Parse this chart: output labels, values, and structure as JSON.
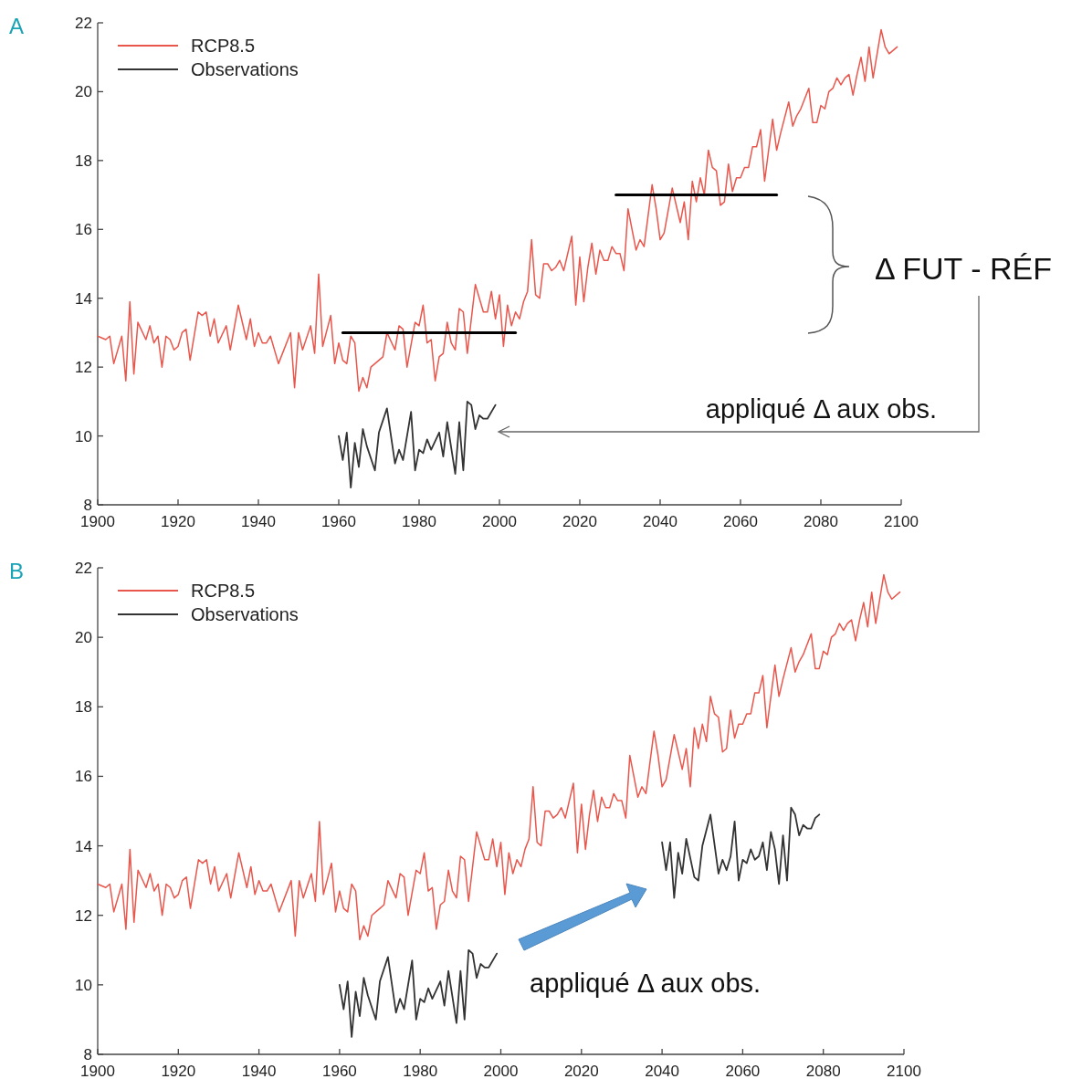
{
  "chart_data": [
    {
      "type": "line",
      "title": "A",
      "xlim": [
        1900,
        2100
      ],
      "ylim": [
        8,
        22
      ],
      "xticks": [
        1900,
        1920,
        1940,
        1960,
        1980,
        2000,
        2020,
        2040,
        2060,
        2080,
        2100
      ],
      "yticks": [
        8,
        10,
        12,
        14,
        16,
        18,
        20,
        22
      ],
      "grid": false,
      "legend": "top left",
      "line_style": "solid",
      "marker": "none",
      "annotations": [
        "Δ FUT - RÉF",
        "appliqué Δ aux obs."
      ],
      "series": [
        {
          "name": "RCP8.5",
          "color": "#e8564c",
          "x": [
            1900,
            1902,
            1903,
            1904,
            1906,
            1907,
            1908,
            1909,
            1910,
            1912,
            1913,
            1914,
            1915,
            1916,
            1917,
            1918,
            1919,
            1920,
            1921,
            1922,
            1923,
            1925,
            1926,
            1927,
            1928,
            1929,
            1930,
            1932,
            1933,
            1935,
            1937,
            1938,
            1939,
            1940,
            1941,
            1942,
            1943,
            1945,
            1948,
            1949,
            1950,
            1951,
            1953,
            1954,
            1955,
            1956,
            1958,
            1959,
            1960,
            1961,
            1962,
            1963,
            1964,
            1965,
            1966,
            1967,
            1968,
            1970,
            1971,
            1972,
            1974,
            1975,
            1976,
            1977,
            1979,
            1980,
            1981,
            1982,
            1983,
            1984,
            1985,
            1986,
            1987,
            1988,
            1989,
            1990,
            1991,
            1992,
            1994,
            1995,
            1996,
            1997,
            1998,
            1999,
            2000,
            2001,
            2002,
            2003,
            2004,
            2005,
            2006,
            2007,
            2008,
            2009,
            2010,
            2011,
            2012,
            2013,
            2014,
            2015,
            2016,
            2018,
            2019,
            2020,
            2021,
            2022,
            2023,
            2024,
            2025,
            2026,
            2027,
            2028,
            2029,
            2030,
            2031,
            2032,
            2033,
            2034,
            2035,
            2036,
            2038,
            2039,
            2040,
            2041,
            2043,
            2045,
            2046,
            2047,
            2048,
            2049,
            2050,
            2051,
            2052,
            2053,
            2054,
            2055,
            2056,
            2057,
            2058,
            2059,
            2060,
            2061,
            2062,
            2063,
            2064,
            2065,
            2066,
            2068,
            2069,
            2070,
            2072,
            2073,
            2074,
            2075,
            2077,
            2078,
            2079,
            2080,
            2081,
            2082,
            2083,
            2084,
            2085,
            2086,
            2087,
            2088,
            2089,
            2090,
            2091,
            2092,
            2093,
            2095,
            2096,
            2097,
            2099
          ],
          "values": [
            12.9,
            12.8,
            12.9,
            12.1,
            12.9,
            11.6,
            13.9,
            11.8,
            13.3,
            12.8,
            13.2,
            12.7,
            12.9,
            12.0,
            12.9,
            12.8,
            12.5,
            12.6,
            13.0,
            13.1,
            12.2,
            13.6,
            13.5,
            13.6,
            12.9,
            13.4,
            12.7,
            13.2,
            12.5,
            13.8,
            12.8,
            13.4,
            12.6,
            13.0,
            12.7,
            12.7,
            12.9,
            12.1,
            13.0,
            11.4,
            13.0,
            12.5,
            13.2,
            12.4,
            14.7,
            12.6,
            13.5,
            12.1,
            12.7,
            12.2,
            12.1,
            12.9,
            12.7,
            11.3,
            11.7,
            11.4,
            12.0,
            12.2,
            12.3,
            13.0,
            12.5,
            13.2,
            13.1,
            12.0,
            13.3,
            13.2,
            13.8,
            12.7,
            12.8,
            11.6,
            12.3,
            12.4,
            13.3,
            12.7,
            12.5,
            13.7,
            13.6,
            12.4,
            14.4,
            14.0,
            13.6,
            13.6,
            14.2,
            13.4,
            14.1,
            12.6,
            13.8,
            13.2,
            13.6,
            13.4,
            13.9,
            14.2,
            15.7,
            14.1,
            14.0,
            15.0,
            15.0,
            14.8,
            14.9,
            15.1,
            14.8,
            15.8,
            13.8,
            15.2,
            13.9,
            14.9,
            15.6,
            14.7,
            15.4,
            15.1,
            15.1,
            15.5,
            15.3,
            15.3,
            14.8,
            16.6,
            16.0,
            15.4,
            15.7,
            15.5,
            17.3,
            16.6,
            15.7,
            15.9,
            17.2,
            16.2,
            16.8,
            15.7,
            17.4,
            16.8,
            17.5,
            17.0,
            18.3,
            17.8,
            17.7,
            16.7,
            16.8,
            17.9,
            17.1,
            17.5,
            17.5,
            17.8,
            17.8,
            18.4,
            18.4,
            18.9,
            17.4,
            19.2,
            18.3,
            18.8,
            19.7,
            19.0,
            19.3,
            19.5,
            20.1,
            19.1,
            19.1,
            19.6,
            19.5,
            20.0,
            20.1,
            20.4,
            20.2,
            20.4,
            20.5,
            19.9,
            20.5,
            21.0,
            20.3,
            21.3,
            20.4,
            21.8,
            21.3,
            21.1,
            21.3
          ]
        },
        {
          "name": "Observations",
          "color": "#333333",
          "x": [
            1960,
            1961,
            1962,
            1963,
            1964,
            1965,
            1966,
            1967,
            1969,
            1970,
            1972,
            1974,
            1975,
            1976,
            1978,
            1979,
            1980,
            1981,
            1982,
            1983,
            1985,
            1986,
            1987,
            1989,
            1990,
            1991,
            1992,
            1993,
            1994,
            1995,
            1996,
            1997,
            1999
          ],
          "values": [
            10.0,
            9.3,
            10.1,
            8.5,
            9.8,
            9.1,
            10.2,
            9.7,
            9.0,
            10.1,
            10.8,
            9.2,
            9.6,
            9.3,
            10.7,
            9.0,
            9.6,
            9.5,
            9.9,
            9.6,
            10.1,
            9.4,
            10.4,
            8.9,
            10.4,
            9.0,
            11.0,
            10.9,
            10.2,
            10.6,
            10.5,
            10.5,
            10.9
          ]
        },
        {
          "color": "#000000",
          "x": [
            1961,
            2004
          ],
          "values": [
            13.0,
            13.0
          ]
        },
        {
          "color": "#000000",
          "x": [
            2029,
            2069
          ],
          "values": [
            17.0,
            17.0
          ]
        }
      ]
    },
    {
      "type": "line",
      "title": "B",
      "xlim": [
        1900,
        2100
      ],
      "ylim": [
        8,
        22
      ],
      "xticks": [
        1900,
        1920,
        1940,
        1960,
        1980,
        2000,
        2020,
        2040,
        2060,
        2080,
        2100
      ],
      "yticks": [
        8,
        10,
        12,
        14,
        16,
        18,
        20,
        22
      ],
      "grid": false,
      "legend": "top left",
      "line_style": "solid",
      "marker": "none",
      "annotations": [
        "appliqué Δ aux obs."
      ],
      "series": [
        {
          "name": "RCP8.5",
          "color": "#e8564c",
          "x": [
            1900,
            1902,
            1903,
            1904,
            1906,
            1907,
            1908,
            1909,
            1910,
            1912,
            1913,
            1914,
            1915,
            1916,
            1917,
            1918,
            1919,
            1920,
            1921,
            1922,
            1923,
            1925,
            1926,
            1927,
            1928,
            1929,
            1930,
            1932,
            1933,
            1935,
            1937,
            1938,
            1939,
            1940,
            1941,
            1942,
            1943,
            1945,
            1948,
            1949,
            1950,
            1951,
            1953,
            1954,
            1955,
            1956,
            1958,
            1959,
            1960,
            1961,
            1962,
            1963,
            1964,
            1965,
            1966,
            1967,
            1968,
            1970,
            1971,
            1972,
            1974,
            1975,
            1976,
            1977,
            1979,
            1980,
            1981,
            1982,
            1983,
            1984,
            1985,
            1986,
            1987,
            1988,
            1989,
            1990,
            1991,
            1992,
            1994,
            1995,
            1996,
            1997,
            1998,
            1999,
            2000,
            2001,
            2002,
            2003,
            2004,
            2005,
            2006,
            2007,
            2008,
            2009,
            2010,
            2011,
            2012,
            2013,
            2014,
            2015,
            2016,
            2018,
            2019,
            2020,
            2021,
            2022,
            2023,
            2024,
            2025,
            2026,
            2027,
            2028,
            2029,
            2030,
            2031,
            2032,
            2033,
            2034,
            2035,
            2036,
            2038,
            2039,
            2040,
            2041,
            2043,
            2045,
            2046,
            2047,
            2048,
            2049,
            2050,
            2051,
            2052,
            2053,
            2054,
            2055,
            2056,
            2057,
            2058,
            2059,
            2060,
            2061,
            2062,
            2063,
            2064,
            2065,
            2066,
            2068,
            2069,
            2070,
            2072,
            2073,
            2074,
            2075,
            2077,
            2078,
            2079,
            2080,
            2081,
            2082,
            2083,
            2084,
            2085,
            2086,
            2087,
            2088,
            2089,
            2090,
            2091,
            2092,
            2093,
            2095,
            2096,
            2097,
            2099
          ],
          "values": [
            12.9,
            12.8,
            12.9,
            12.1,
            12.9,
            11.6,
            13.9,
            11.8,
            13.3,
            12.8,
            13.2,
            12.7,
            12.9,
            12.0,
            12.9,
            12.8,
            12.5,
            12.6,
            13.0,
            13.1,
            12.2,
            13.6,
            13.5,
            13.6,
            12.9,
            13.4,
            12.7,
            13.2,
            12.5,
            13.8,
            12.8,
            13.4,
            12.6,
            13.0,
            12.7,
            12.7,
            12.9,
            12.1,
            13.0,
            11.4,
            13.0,
            12.5,
            13.2,
            12.4,
            14.7,
            12.6,
            13.5,
            12.1,
            12.7,
            12.2,
            12.1,
            12.9,
            12.7,
            11.3,
            11.7,
            11.4,
            12.0,
            12.2,
            12.3,
            13.0,
            12.5,
            13.2,
            13.1,
            12.0,
            13.3,
            13.2,
            13.8,
            12.7,
            12.8,
            11.6,
            12.3,
            12.4,
            13.3,
            12.7,
            12.5,
            13.7,
            13.6,
            12.4,
            14.4,
            14.0,
            13.6,
            13.6,
            14.2,
            13.4,
            14.1,
            12.6,
            13.8,
            13.2,
            13.6,
            13.4,
            13.9,
            14.2,
            15.7,
            14.1,
            14.0,
            15.0,
            15.0,
            14.8,
            14.9,
            15.1,
            14.8,
            15.8,
            13.8,
            15.2,
            13.9,
            14.9,
            15.6,
            14.7,
            15.4,
            15.1,
            15.1,
            15.5,
            15.3,
            15.3,
            14.8,
            16.6,
            16.0,
            15.4,
            15.7,
            15.5,
            17.3,
            16.6,
            15.7,
            15.9,
            17.2,
            16.2,
            16.8,
            15.7,
            17.4,
            16.8,
            17.5,
            17.0,
            18.3,
            17.8,
            17.7,
            16.7,
            16.8,
            17.9,
            17.1,
            17.5,
            17.5,
            17.8,
            17.8,
            18.4,
            18.4,
            18.9,
            17.4,
            19.2,
            18.3,
            18.8,
            19.7,
            19.0,
            19.3,
            19.5,
            20.1,
            19.1,
            19.1,
            19.6,
            19.5,
            20.0,
            20.1,
            20.4,
            20.2,
            20.4,
            20.5,
            19.9,
            20.5,
            21.0,
            20.3,
            21.3,
            20.4,
            21.8,
            21.3,
            21.1,
            21.3
          ]
        },
        {
          "name": "Observations",
          "color": "#333333",
          "x": [
            1960,
            1961,
            1962,
            1963,
            1964,
            1965,
            1966,
            1967,
            1969,
            1970,
            1972,
            1974,
            1975,
            1976,
            1978,
            1979,
            1980,
            1981,
            1982,
            1983,
            1985,
            1986,
            1987,
            1989,
            1990,
            1991,
            1992,
            1993,
            1994,
            1995,
            1996,
            1997,
            1999
          ],
          "values": [
            10.0,
            9.3,
            10.1,
            8.5,
            9.8,
            9.1,
            10.2,
            9.7,
            9.0,
            10.1,
            10.8,
            9.2,
            9.6,
            9.3,
            10.7,
            9.0,
            9.6,
            9.5,
            9.9,
            9.6,
            10.1,
            9.4,
            10.4,
            8.9,
            10.4,
            9.0,
            11.0,
            10.9,
            10.2,
            10.6,
            10.5,
            10.5,
            10.9
          ]
        },
        {
          "color": "#333333",
          "x": [
            2040,
            2041,
            2042,
            2043,
            2044,
            2045,
            2046,
            2048,
            2049,
            2050,
            2052,
            2054,
            2055,
            2056,
            2057,
            2058,
            2059,
            2060,
            2061,
            2062,
            2063,
            2064,
            2065,
            2066,
            2067,
            2068,
            2069,
            2070,
            2071,
            2072,
            2073,
            2074,
            2075,
            2076,
            2077,
            2078,
            2079
          ],
          "values": [
            14.1,
            13.3,
            14.1,
            12.5,
            13.8,
            13.2,
            14.2,
            13.1,
            13.0,
            14.0,
            14.9,
            13.2,
            13.6,
            13.3,
            13.7,
            14.7,
            13.0,
            13.6,
            13.5,
            13.9,
            13.6,
            13.7,
            14.1,
            13.3,
            14.4,
            13.9,
            12.9,
            14.3,
            13.0,
            15.1,
            14.9,
            14.3,
            14.6,
            14.5,
            14.5,
            14.8,
            14.9
          ]
        }
      ]
    }
  ]
}
